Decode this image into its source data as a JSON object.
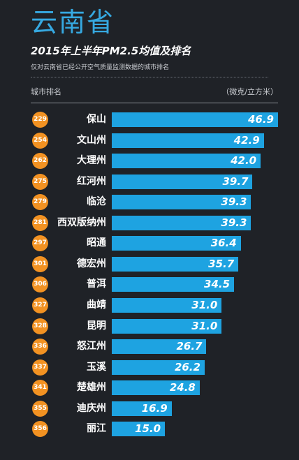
{
  "header": {
    "province": "云南省",
    "title": "2015年上半年PM2.5均值及排名",
    "subtitle": "仅对云南省已经公开空气质量监测数据的城市排名",
    "col_left": "城市排名",
    "col_right": "（微克/立方米）"
  },
  "colors": {
    "bar": "#1ea3e1",
    "rank": "#f29222",
    "province": "#36a9e1",
    "background": "#1f2227"
  },
  "chart_data": {
    "type": "bar",
    "orientation": "horizontal",
    "categories": [
      "保山",
      "文山州",
      "大理州",
      "红河州",
      "临沧",
      "西双版纳州",
      "昭通",
      "德宏州",
      "普洱",
      "曲靖",
      "昆明",
      "怒江州",
      "玉溪",
      "楚雄州",
      "迪庆州",
      "丽江"
    ],
    "ranks": [
      "229",
      "254",
      "262",
      "275",
      "279",
      "281",
      "297",
      "301",
      "306",
      "327",
      "328",
      "336",
      "337",
      "341",
      "355",
      "356"
    ],
    "values": [
      46.9,
      42.9,
      42.0,
      39.7,
      39.3,
      39.3,
      36.4,
      35.7,
      34.5,
      31.0,
      31.0,
      26.7,
      26.2,
      24.8,
      16.9,
      15.0
    ],
    "value_labels": [
      "46.9",
      "42.9",
      "42.0",
      "39.7",
      "39.3",
      "39.3",
      "36.4",
      "35.7",
      "34.5",
      "31.0",
      "31.0",
      "26.7",
      "26.2",
      "24.8",
      "16.9",
      "15.0"
    ],
    "xlim": [
      0,
      46.9
    ]
  }
}
